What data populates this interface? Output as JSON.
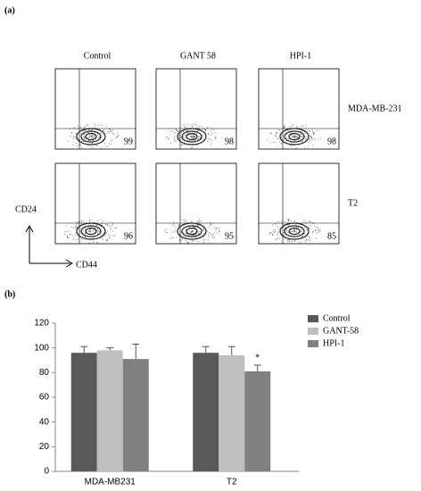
{
  "panel_a": {
    "label": "(a)",
    "columns": [
      "Control",
      "GANT 58",
      "HPI-1"
    ],
    "rows": [
      {
        "name": "MDA-MB-231",
        "values": [
          99,
          98,
          98
        ]
      },
      {
        "name": "T2",
        "values": [
          96,
          95,
          85
        ]
      }
    ],
    "y_axis_label": "CD24",
    "x_axis_label": "CD44"
  },
  "panel_b_label": "(b)",
  "chart_data": {
    "type": "bar",
    "categories": [
      "MDA-MB231",
      "T2"
    ],
    "series": [
      {
        "name": "Control",
        "color": "#595959",
        "values": [
          96,
          96
        ],
        "errors": [
          5,
          5
        ]
      },
      {
        "name": "GANT-58",
        "color": "#bfbfbf",
        "values": [
          98,
          94
        ],
        "errors": [
          2,
          7
        ]
      },
      {
        "name": "HPI-1",
        "color": "#808080",
        "values": [
          91,
          81
        ],
        "errors": [
          12,
          5
        ]
      }
    ],
    "ylim": [
      0,
      120
    ],
    "yticks": [
      0,
      20,
      40,
      60,
      80,
      100,
      120
    ],
    "annotations": [
      {
        "text": "*",
        "series": 2,
        "category": 1
      }
    ]
  }
}
